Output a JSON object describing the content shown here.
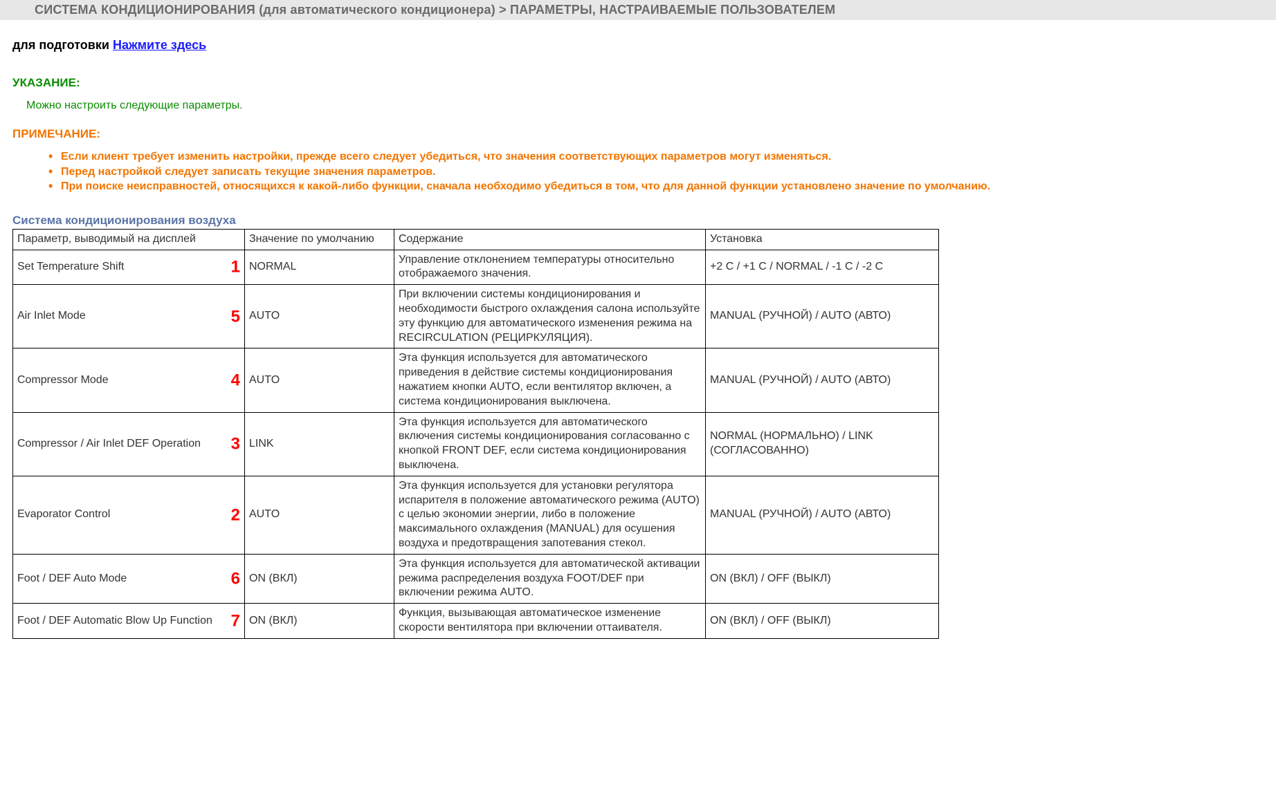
{
  "breadcrumb": "СИСТЕМА КОНДИЦИОНИРОВАНИЯ (для автоматического кондиционера) > ПАРАМЕТРЫ, НАСТРАИВАЕМЫЕ ПОЛЬЗОВАТЕЛЕМ",
  "prep": {
    "prefix": "для подготовки ",
    "link": "Нажмите здесь"
  },
  "hint": {
    "heading": "УКАЗАНИЕ:",
    "text": "Можно настроить следующие параметры."
  },
  "note": {
    "heading": "ПРИМЕЧАНИЕ:",
    "items": [
      "Если клиент требует изменить настройки, прежде всего следует убедиться, что значения соответствующих параметров могут изменяться.",
      "Перед настройкой следует записать текущие значения параметров.",
      "При поиске неисправностей, относящихся к какой-либо функции, сначала необходимо убедиться в том, что для данной функции установлено значение по умолчанию."
    ]
  },
  "table": {
    "caption": "Система кондиционирования воздуха",
    "columns": [
      "Параметр, выводимый на дисплей",
      "Значение по умолчанию",
      "Содержание",
      "Установка"
    ],
    "rows": [
      {
        "badge": "1",
        "param": "Set Temperature Shift",
        "default": "NORMAL",
        "content": "Управление отклонением температуры относительно отображаемого значения.",
        "setting": "+2 C / +1 C / NORMAL / -1 C / -2 C"
      },
      {
        "badge": "5",
        "param": "Air Inlet Mode",
        "default": "AUTO",
        "content": "При включении системы кондиционирования и необходимости быстрого охлаждения салона используйте эту функцию для автоматического изменения режима на RECIRCULATION (РЕЦИРКУЛЯЦИЯ).",
        "setting": "MANUAL (РУЧНОЙ) / AUTO (АВТО)"
      },
      {
        "badge": "4",
        "param": "Compressor Mode",
        "default": "AUTO",
        "content": "Эта функция используется для автоматического приведения в действие системы кондиционирования нажатием кнопки AUTO, если вентилятор включен, а система кондиционирования выключена.",
        "setting": "MANUAL (РУЧНОЙ) / AUTO (АВТО)"
      },
      {
        "badge": "3",
        "param": "Compressor / Air Inlet DEF Operation",
        "default": "LINK",
        "content": "Эта функция используется для автоматического включения системы кондиционирования согласованно с кнопкой FRONT DEF, если система кондиционирования выключена.",
        "setting": "NORMAL (НОРМАЛЬНО) / LINK (СОГЛАСОВАННО)"
      },
      {
        "badge": "2",
        "param": "Evaporator Control",
        "default": "AUTO",
        "content": "Эта функция используется для установки регулятора испарителя в положение автоматического режима (AUTO) с целью экономии энергии, либо в положение максимального охлаждения (MANUAL) для осушения воздуха и предотвращения запотевания стекол.",
        "setting": "MANUAL (РУЧНОЙ) / AUTO (АВТО)"
      },
      {
        "badge": "6",
        "param": "Foot / DEF Auto Mode",
        "default": "ON (ВКЛ)",
        "content": "Эта функция используется для автоматической активации режима распределения воздуха FOOT/DEF при включении режима AUTO.",
        "setting": "ON (ВКЛ) / OFF (ВЫКЛ)"
      },
      {
        "badge": "7",
        "param": "Foot / DEF Automatic Blow Up Function",
        "default": "ON (ВКЛ)",
        "content": "Функция, вызывающая автоматическое изменение скорости вентилятора при включении оттаивателя.",
        "setting": "ON (ВКЛ) / OFF (ВЫКЛ)"
      }
    ]
  }
}
